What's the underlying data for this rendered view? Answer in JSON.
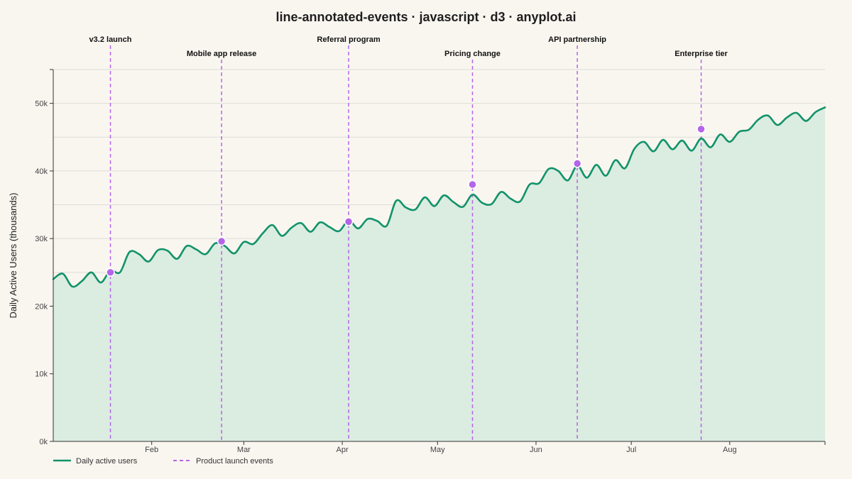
{
  "chart_data": {
    "type": "line",
    "title": "line-annotated-events · javascript · d3 · anyplot.ai",
    "xlabel": "",
    "ylabel": "Daily Active Users (thousands)",
    "ylim": [
      0,
      55
    ],
    "yticks": [
      0,
      10,
      20,
      30,
      40,
      50
    ],
    "ytick_labels": [
      "0k",
      "10k",
      "20k",
      "30k",
      "40k",
      "50k"
    ],
    "xlim": [
      "2024-01-01",
      "2024-08-31"
    ],
    "xticks": [
      "2024-02-01",
      "2024-03-01",
      "2024-04-01",
      "2024-05-01",
      "2024-06-01",
      "2024-07-01",
      "2024-08-01"
    ],
    "xtick_labels": [
      "Feb",
      "Mar",
      "Apr",
      "May",
      "Jun",
      "Jul",
      "Aug"
    ],
    "grid": true,
    "legend_position": "bottom-left",
    "colors": {
      "line": "#12936a",
      "area": "#dbece1",
      "event": "#b565e8",
      "background": "#f9f6f0",
      "grid": "#dcdcd6"
    },
    "series": [
      {
        "name": "Daily active users",
        "x": [
          "2024-01-01",
          "2024-01-04",
          "2024-01-07",
          "2024-01-10",
          "2024-01-13",
          "2024-01-16",
          "2024-01-19",
          "2024-01-22",
          "2024-01-25",
          "2024-01-28",
          "2024-01-31",
          "2024-02-03",
          "2024-02-06",
          "2024-02-09",
          "2024-02-12",
          "2024-02-15",
          "2024-02-18",
          "2024-02-21",
          "2024-02-24",
          "2024-02-27",
          "2024-03-01",
          "2024-03-04",
          "2024-03-07",
          "2024-03-10",
          "2024-03-13",
          "2024-03-16",
          "2024-03-19",
          "2024-03-22",
          "2024-03-25",
          "2024-03-28",
          "2024-03-31",
          "2024-04-03",
          "2024-04-06",
          "2024-04-09",
          "2024-04-12",
          "2024-04-15",
          "2024-04-18",
          "2024-04-21",
          "2024-04-24",
          "2024-04-27",
          "2024-04-30",
          "2024-05-03",
          "2024-05-06",
          "2024-05-09",
          "2024-05-12",
          "2024-05-15",
          "2024-05-18",
          "2024-05-21",
          "2024-05-24",
          "2024-05-27",
          "2024-05-30",
          "2024-06-02",
          "2024-06-05",
          "2024-06-08",
          "2024-06-11",
          "2024-06-14",
          "2024-06-17",
          "2024-06-20",
          "2024-06-23",
          "2024-06-26",
          "2024-06-29",
          "2024-07-02",
          "2024-07-05",
          "2024-07-08",
          "2024-07-11",
          "2024-07-14",
          "2024-07-17",
          "2024-07-20",
          "2024-07-23",
          "2024-07-26",
          "2024-07-29",
          "2024-08-01",
          "2024-08-04",
          "2024-08-07",
          "2024-08-10",
          "2024-08-13",
          "2024-08-16",
          "2024-08-19",
          "2024-08-22",
          "2024-08-25",
          "2024-08-28",
          "2024-08-31"
        ],
        "values": [
          24.0,
          24.8,
          22.9,
          23.7,
          25.0,
          23.5,
          25.3,
          25.0,
          28.0,
          27.7,
          26.6,
          28.3,
          28.2,
          27.0,
          28.9,
          28.4,
          27.7,
          29.3,
          28.9,
          27.8,
          29.5,
          29.2,
          30.8,
          32.0,
          30.4,
          31.6,
          32.3,
          31.0,
          32.4,
          31.7,
          31.1,
          32.7,
          31.5,
          32.9,
          32.6,
          31.9,
          35.6,
          34.6,
          34.3,
          36.1,
          34.8,
          36.4,
          35.4,
          34.7,
          36.5,
          35.3,
          35.1,
          36.9,
          35.9,
          35.5,
          38.0,
          38.2,
          40.3,
          40.0,
          38.6,
          40.8,
          39.0,
          40.9,
          39.3,
          41.6,
          40.4,
          43.3,
          44.3,
          42.9,
          44.6,
          43.2,
          44.5,
          43.0,
          44.8,
          43.5,
          45.4,
          44.3,
          45.8,
          46.1,
          47.6,
          48.2,
          46.8,
          47.9,
          48.6,
          47.4,
          48.7,
          49.4
        ]
      }
    ],
    "events": [
      {
        "date": "2024-01-19",
        "label": "v3.2 launch",
        "value": 25.0,
        "row": 1
      },
      {
        "date": "2024-02-23",
        "label": "Mobile app release",
        "value": 29.6,
        "row": 2
      },
      {
        "date": "2024-04-03",
        "label": "Referral program",
        "value": 32.5,
        "row": 1
      },
      {
        "date": "2024-05-12",
        "label": "Pricing change",
        "value": 38.0,
        "row": 2
      },
      {
        "date": "2024-06-14",
        "label": "API partnership",
        "value": 41.1,
        "row": 1
      },
      {
        "date": "2024-07-23",
        "label": "Enterprise tier",
        "value": 46.2,
        "row": 2
      }
    ],
    "legend": [
      {
        "label": "Daily active users",
        "style": "solid"
      },
      {
        "label": "Product launch events",
        "style": "dashed"
      }
    ]
  }
}
